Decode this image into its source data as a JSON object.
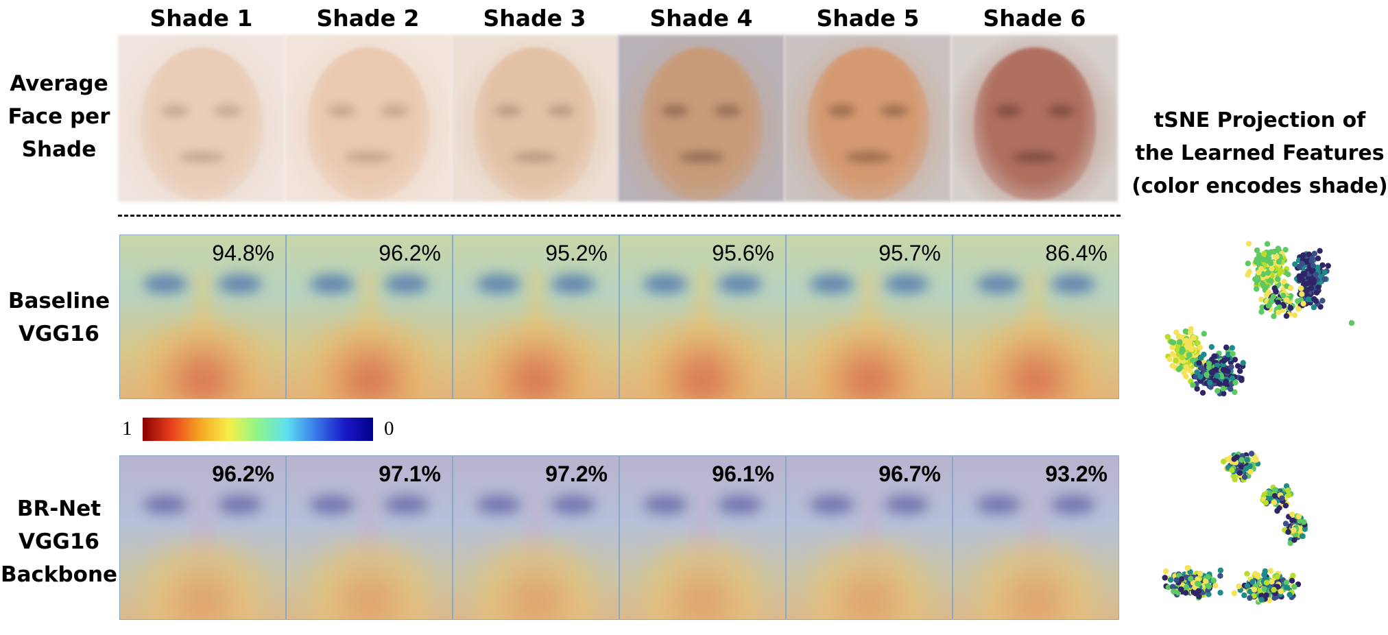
{
  "shade_headers": [
    "Shade 1",
    "Shade 2",
    "Shade 3",
    "Shade 4",
    "Shade 5",
    "Shade 6"
  ],
  "row_labels": {
    "average": [
      "Average",
      "Face per",
      "Shade"
    ],
    "baseline": [
      "Baseline",
      "VGG16"
    ],
    "brnet": [
      "BR-Net",
      "VGG16",
      "Backbone"
    ]
  },
  "tsne_label": [
    "tSNE Projection of",
    "the Learned Features",
    "(color encodes shade)"
  ],
  "baseline_accuracy": [
    "94.8%",
    "96.2%",
    "95.2%",
    "95.6%",
    "95.7%",
    "86.4%"
  ],
  "brnet_accuracy": [
    "96.2%",
    "97.1%",
    "97.2%",
    "96.1%",
    "96.7%",
    "93.2%"
  ],
  "colorbar": {
    "high_label": "1",
    "low_label": "0",
    "colors": [
      "#8b0000",
      "#e8401c",
      "#f5a623",
      "#f7f04a",
      "#8ef58a",
      "#5ee0f0",
      "#3a7ae8",
      "#1a1ac8",
      "#00008b"
    ]
  },
  "face_colors": [
    {
      "skin": "#e9cdb7",
      "bg": "#efe5de",
      "feature": "#a88c7c"
    },
    {
      "skin": "#eac9b0",
      "bg": "#f1e4db",
      "feature": "#a88a76"
    },
    {
      "skin": "#e4c2a6",
      "bg": "#ece0d6",
      "feature": "#9c7e68"
    },
    {
      "skin": "#c89c7a",
      "bg": "#b9b2b8",
      "feature": "#6a4a38"
    },
    {
      "skin": "#d49a72",
      "bg": "#c9c2c0",
      "feature": "#6e4830"
    },
    {
      "skin": "#b07060",
      "bg": "#d6d0cc",
      "feature": "#5a3028"
    }
  ],
  "tsne_colors": [
    "#2f2466",
    "#3b4f8a",
    "#1f8a8a",
    "#5ec962",
    "#b8de29",
    "#f4e35a"
  ]
}
